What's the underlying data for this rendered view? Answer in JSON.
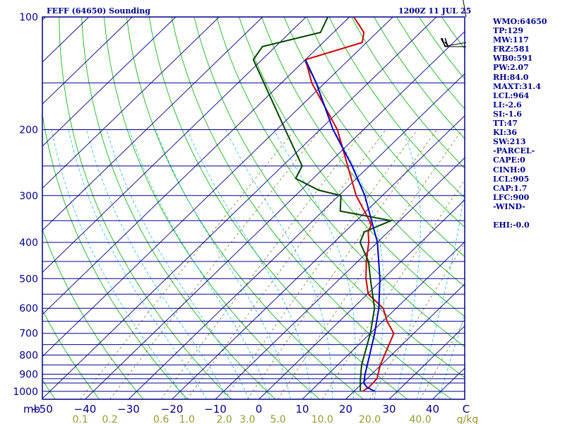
{
  "header": {
    "station_title": "FEFF (64650) Sounding",
    "valid_time": "1200Z 11 JUL 25"
  },
  "indices": [
    "WMO:64650",
    "TP:129",
    "MW:117",
    "FRZ:581",
    "WB0:591",
    "PW:2.07",
    "RH:84.0",
    "MAXT:31.4",
    "LCL:964",
    "LI:-2.6",
    "SI:-1.6",
    "TT:47",
    "KI:36",
    "SW:213",
    "-PARCEL-",
    "CAPE:0",
    "CINH:0",
    "LCL:905",
    "CAP:1.7",
    "LFC:900",
    "-WIND-",
    "",
    "EHI:-0.0"
  ],
  "colors": {
    "frame": "#00008b",
    "isobar": "#00008b",
    "isotherm": "#00008b",
    "dry_adiabat": "#00aa00",
    "moist_adiabat": "#22bbdd",
    "mixing_ratio": "#777722",
    "temperature": "#cc0000",
    "dewpoint": "#004400",
    "parcel": "#0000cc",
    "label": "#00008b",
    "mixing_label": "#999933"
  },
  "chart_data": {
    "type": "line",
    "diagram": "skew-T log-P",
    "title": "FEFF (64650) Sounding",
    "subtitle": "1200Z 11 JUL 25",
    "ylabel": "mb",
    "xlabel": "C",
    "mixing_ratio_unit": "g/kg",
    "y_scale": "log",
    "ylim": [
      1050,
      100
    ],
    "xlim": [
      -50,
      50
    ],
    "pressure_ticks": [
      100,
      200,
      300,
      400,
      500,
      600,
      700,
      800,
      900,
      1000
    ],
    "temperature_ticks": [
      -50,
      -40,
      -30,
      -20,
      -10,
      0,
      10,
      20,
      30,
      40
    ],
    "mixing_ratio_ticks": [
      0.1,
      0.2,
      0.6,
      1.0,
      2.0,
      3.0,
      5.0,
      10.0,
      20.0,
      40.0
    ],
    "mixing_ratio_tick_labels": [
      "0.1",
      "0.2",
      "0.6",
      "1.0",
      "2.0",
      "3.0",
      "5.0",
      "10.0",
      "20.0",
      "40.0"
    ],
    "isobars": [
      100,
      150,
      200,
      250,
      300,
      350,
      400,
      450,
      500,
      550,
      600,
      650,
      700,
      750,
      800,
      850,
      900,
      925,
      950,
      1000,
      1050
    ],
    "series": [
      {
        "name": "Temperature",
        "points": [
          {
            "p": 1000,
            "t": 22.0
          },
          {
            "p": 975,
            "t": 22.5
          },
          {
            "p": 950,
            "t": 22.4
          },
          {
            "p": 925,
            "t": 22.3
          },
          {
            "p": 850,
            "t": 19.8
          },
          {
            "p": 700,
            "t": 15.4
          },
          {
            "p": 650,
            "t": 11.0
          },
          {
            "p": 600,
            "t": 7.0
          },
          {
            "p": 550,
            "t": 0.2
          },
          {
            "p": 500,
            "t": -4.0
          },
          {
            "p": 450,
            "t": -8.0
          },
          {
            "p": 400,
            "t": -12.0
          },
          {
            "p": 375,
            "t": -14.6
          },
          {
            "p": 360,
            "t": -15.5
          },
          {
            "p": 350,
            "t": -17.0
          },
          {
            "p": 300,
            "t": -26.0
          },
          {
            "p": 250,
            "t": -35.0
          },
          {
            "p": 200,
            "t": -46.0
          },
          {
            "p": 150,
            "t": -63.0
          },
          {
            "p": 130,
            "t": -70.0
          },
          {
            "p": 117,
            "t": -61.0
          },
          {
            "p": 110,
            "t": -63.0
          },
          {
            "p": 100,
            "t": -69.0
          }
        ]
      },
      {
        "name": "Dewpoint",
        "points": [
          {
            "p": 1000,
            "t": 21.5
          },
          {
            "p": 950,
            "t": 19.5
          },
          {
            "p": 925,
            "t": 18.5
          },
          {
            "p": 850,
            "t": 15.5
          },
          {
            "p": 700,
            "t": 10.0
          },
          {
            "p": 600,
            "t": 5.0
          },
          {
            "p": 500,
            "t": -3.0
          },
          {
            "p": 450,
            "t": -7.5
          },
          {
            "p": 400,
            "t": -14.0
          },
          {
            "p": 375,
            "t": -15.5
          },
          {
            "p": 350,
            "t": -12.0
          },
          {
            "p": 330,
            "t": -26.0
          },
          {
            "p": 300,
            "t": -29.5
          },
          {
            "p": 290,
            "t": -36.0
          },
          {
            "p": 270,
            "t": -44.0
          },
          {
            "p": 250,
            "t": -45.5
          },
          {
            "p": 200,
            "t": -58.0
          },
          {
            "p": 130,
            "t": -82.0
          },
          {
            "p": 120,
            "t": -83.0
          },
          {
            "p": 110,
            "t": -73.0
          },
          {
            "p": 100,
            "t": -75.0
          }
        ]
      },
      {
        "name": "Parcel",
        "points": [
          {
            "p": 1000,
            "t": 24.8
          },
          {
            "p": 975,
            "t": 22.0
          },
          {
            "p": 950,
            "t": 20.3
          },
          {
            "p": 900,
            "t": 18.5
          },
          {
            "p": 800,
            "t": 15.0
          },
          {
            "p": 700,
            "t": 11.0
          },
          {
            "p": 600,
            "t": 6.0
          },
          {
            "p": 500,
            "t": -0.8
          },
          {
            "p": 400,
            "t": -10.0
          },
          {
            "p": 300,
            "t": -24.0
          },
          {
            "p": 250,
            "t": -34.0
          },
          {
            "p": 200,
            "t": -47.0
          },
          {
            "p": 150,
            "t": -62.0
          },
          {
            "p": 130,
            "t": -70.0
          }
        ]
      }
    ],
    "wind_barbs": [
      {
        "p": 100,
        "direction": 350,
        "speed_kt": 10
      },
      {
        "p": 117,
        "direction": 260,
        "speed_kt": 15
      },
      {
        "p": 120,
        "direction": 270,
        "speed_kt": 20
      }
    ]
  }
}
